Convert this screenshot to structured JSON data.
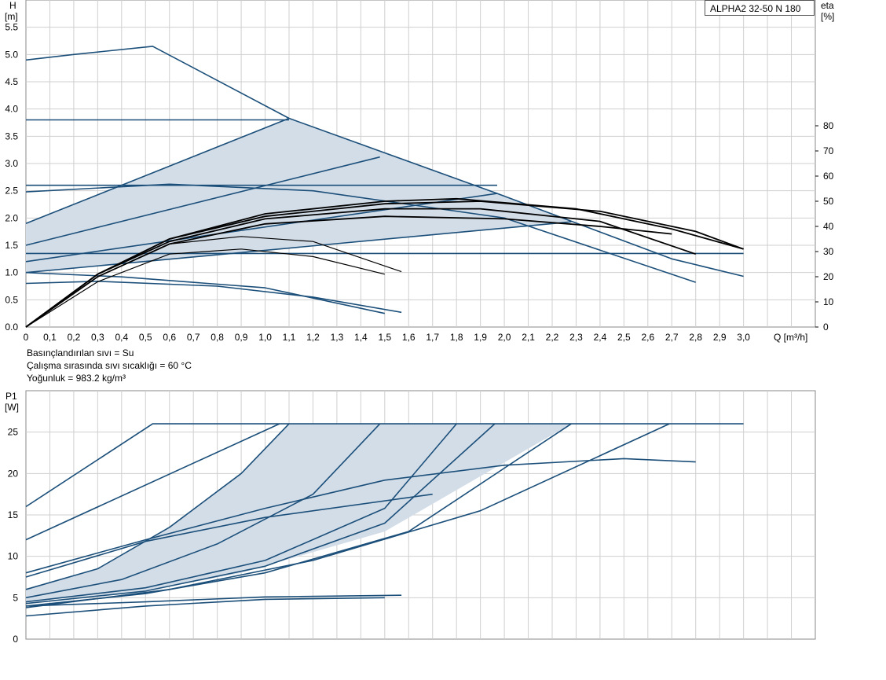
{
  "model_label": "ALPHA2 32-50 N 180",
  "notes": {
    "liquid": "Basınçlandırılan sıvı = Su",
    "temperature": "Çalışma sırasında sıvı sıcaklığı = 60 °C",
    "density": "Yoğunluk = 983.2 kg/m³"
  },
  "colors": {
    "curve": "#1b4f7a",
    "eta": "#000000",
    "fill": "#d3dde8",
    "grid": "#cfcfcf"
  },
  "chart_data": [
    {
      "type": "line",
      "id": "head",
      "left_axis": {
        "label_1": "H",
        "label_2": "[m]",
        "ylim": [
          0,
          6
        ],
        "ticks": [
          "0.0",
          "0.5",
          "1.0",
          "1.5",
          "2.0",
          "2.5",
          "3.0",
          "3.5",
          "4.0",
          "4.5",
          "5.0",
          "5.5"
        ]
      },
      "right_axis": {
        "label_1": "eta",
        "label_2": "[%]",
        "ylim": [
          0,
          130
        ],
        "ticks": [
          "0",
          "10",
          "20",
          "30",
          "40",
          "50",
          "60",
          "70",
          "80"
        ]
      },
      "x_axis": {
        "label": "Q [m³/h]",
        "xlim": [
          0,
          3.3
        ],
        "ticks": [
          "0",
          "0,1",
          "0,2",
          "0,3",
          "0,4",
          "0,5",
          "0,6",
          "0,7",
          "0,8",
          "0,9",
          "1,0",
          "1,1",
          "1,2",
          "1,3",
          "1,4",
          "1,5",
          "1,6",
          "1,7",
          "1,8",
          "1,9",
          "2,0",
          "2,1",
          "2,2",
          "2,3",
          "2,4",
          "2,5",
          "2,6",
          "2,7",
          "2,8",
          "2,9",
          "3,0"
        ]
      },
      "grid": true,
      "shaded_areas": [
        {
          "points": [
            [
              0,
              1.9
            ],
            [
              1.1,
              3.83
            ],
            [
              1.97,
              2.45
            ],
            [
              2.28,
              1.93
            ],
            [
              0,
              1.0
            ]
          ]
        }
      ],
      "series": [
        {
          "points": [
            [
              0,
              4.9
            ],
            [
              0.2,
              5.0
            ],
            [
              0.53,
              5.15
            ],
            [
              1.1,
              3.83
            ],
            [
              1.97,
              2.45
            ],
            [
              2.7,
              1.25
            ],
            [
              3.0,
              0.93
            ]
          ]
        },
        {
          "points": [
            [
              0,
              3.8
            ],
            [
              1.1,
              3.8
            ]
          ]
        },
        {
          "points": [
            [
              0,
              2.6
            ],
            [
              1.97,
              2.6
            ]
          ]
        },
        {
          "points": [
            [
              0,
              1.35
            ],
            [
              3.0,
              1.35
            ]
          ]
        },
        {
          "points": [
            [
              0,
              1.9
            ],
            [
              1.1,
              3.83
            ]
          ]
        },
        {
          "points": [
            [
              0,
              1.5
            ],
            [
              1.48,
              3.12
            ]
          ]
        },
        {
          "points": [
            [
              0,
              1.2
            ],
            [
              1.97,
              2.45
            ]
          ]
        },
        {
          "points": [
            [
              0,
              1.0
            ],
            [
              2.28,
              1.93
            ]
          ]
        },
        {
          "points": [
            [
              0,
              2.48
            ],
            [
              0.6,
              2.62
            ],
            [
              1.2,
              2.5
            ],
            [
              2.0,
              2.0
            ],
            [
              2.8,
              0.82
            ]
          ]
        },
        {
          "points": [
            [
              0,
              0.8
            ],
            [
              0.3,
              0.84
            ],
            [
              0.8,
              0.75
            ],
            [
              1.2,
              0.55
            ],
            [
              1.57,
              0.27
            ]
          ]
        },
        {
          "points": [
            [
              0,
              1.0
            ],
            [
              0.4,
              0.92
            ],
            [
              1.0,
              0.72
            ],
            [
              1.5,
              0.25
            ]
          ]
        }
      ],
      "eta_series": [
        {
          "points": [
            [
              0,
              0
            ],
            [
              0.3,
              20
            ],
            [
              0.6,
              33
            ],
            [
              0.9,
              36
            ],
            [
              1.2,
              34
            ],
            [
              1.57,
              22
            ]
          ]
        },
        {
          "points": [
            [
              0,
              0
            ],
            [
              0.3,
              18
            ],
            [
              0.6,
              29
            ],
            [
              0.9,
              31
            ],
            [
              1.2,
              28
            ],
            [
              1.5,
              21
            ]
          ]
        },
        {
          "points": [
            [
              0,
              0
            ],
            [
              0.3,
              21
            ],
            [
              0.6,
              35
            ],
            [
              1.0,
              44
            ],
            [
              1.5,
              49
            ],
            [
              1.9,
              50
            ],
            [
              2.4,
              46
            ],
            [
              2.8,
              38
            ],
            [
              3.0,
              31
            ]
          ]
        },
        {
          "points": [
            [
              0,
              0
            ],
            [
              0.3,
              21
            ],
            [
              0.6,
              35
            ],
            [
              1.0,
              45
            ],
            [
              1.5,
              50
            ],
            [
              1.8,
              51
            ],
            [
              2.3,
              47
            ],
            [
              2.7,
              39
            ],
            [
              3.0,
              31
            ]
          ]
        },
        {
          "points": [
            [
              0,
              0
            ],
            [
              0.3,
              21
            ],
            [
              0.6,
              34
            ],
            [
              1.0,
              43
            ],
            [
              1.5,
              47
            ],
            [
              1.9,
              47
            ],
            [
              2.4,
              42
            ],
            [
              2.8,
              29
            ]
          ]
        },
        {
          "points": [
            [
              0,
              0
            ],
            [
              0.3,
              20
            ],
            [
              0.6,
              33
            ],
            [
              1.0,
              41
            ],
            [
              1.5,
              44
            ],
            [
              2.0,
              43
            ],
            [
              2.4,
              40
            ],
            [
              2.7,
              37
            ]
          ]
        }
      ]
    },
    {
      "type": "line",
      "id": "power",
      "left_axis": {
        "label_1": "P1",
        "label_2": "[W]",
        "ylim": [
          0,
          30
        ],
        "ticks": [
          "0",
          "5",
          "10",
          "15",
          "20",
          "25"
        ]
      },
      "xlim": [
        0,
        3.3
      ],
      "grid": true,
      "shaded_areas": [
        {
          "points": [
            [
              0,
              6.0
            ],
            [
              0.3,
              8.5
            ],
            [
              0.6,
              13.5
            ],
            [
              0.9,
              20.0
            ],
            [
              1.1,
              26.0
            ],
            [
              2.28,
              26.0
            ],
            [
              1.5,
              13.0
            ],
            [
              0.9,
              8.0
            ],
            [
              0.5,
              5.8
            ],
            [
              0,
              4.5
            ]
          ]
        }
      ],
      "series": [
        {
          "points": [
            [
              0,
              16.0
            ],
            [
              0.53,
              26.0
            ],
            [
              3.0,
              26.0
            ]
          ]
        },
        {
          "points": [
            [
              0,
              12.0
            ],
            [
              1.06,
              26.0
            ]
          ]
        },
        {
          "points": [
            [
              0,
              6.0
            ],
            [
              0.3,
              8.5
            ],
            [
              0.6,
              13.5
            ],
            [
              0.9,
              20.0
            ],
            [
              1.1,
              26.0
            ]
          ]
        },
        {
          "points": [
            [
              0,
              5.0
            ],
            [
              0.4,
              7.2
            ],
            [
              0.8,
              11.5
            ],
            [
              1.2,
              17.5
            ],
            [
              1.48,
              26.0
            ]
          ]
        },
        {
          "points": [
            [
              0,
              4.5
            ],
            [
              0.5,
              6.2
            ],
            [
              1.0,
              9.5
            ],
            [
              1.5,
              15.8
            ],
            [
              1.8,
              26.0
            ]
          ]
        },
        {
          "points": [
            [
              0,
              4.3
            ],
            [
              0.5,
              5.8
            ],
            [
              1.0,
              8.8
            ],
            [
              1.5,
              14.0
            ],
            [
              1.96,
              26.0
            ]
          ]
        },
        {
          "points": [
            [
              0,
              4.0
            ],
            [
              0.5,
              5.5
            ],
            [
              1.0,
              8.0
            ],
            [
              1.6,
              13.0
            ],
            [
              2.28,
              26.0
            ]
          ]
        },
        {
          "points": [
            [
              0,
              3.8
            ],
            [
              0.6,
              6.0
            ],
            [
              1.2,
              9.5
            ],
            [
              1.9,
              15.5
            ],
            [
              2.69,
              26.0
            ]
          ]
        },
        {
          "points": [
            [
              0,
              8.0
            ],
            [
              0.5,
              12.0
            ],
            [
              1.0,
              15.8
            ],
            [
              1.5,
              19.2
            ],
            [
              2.0,
              21.0
            ],
            [
              2.5,
              21.8
            ],
            [
              2.8,
              21.4
            ]
          ]
        },
        {
          "points": [
            [
              0,
              7.5
            ],
            [
              0.5,
              11.8
            ],
            [
              1.0,
              14.7
            ],
            [
              1.7,
              17.5
            ]
          ]
        },
        {
          "points": [
            [
              0,
              4.0
            ],
            [
              0.5,
              4.5
            ],
            [
              1.0,
              5.1
            ],
            [
              1.57,
              5.3
            ]
          ]
        },
        {
          "points": [
            [
              0,
              2.8
            ],
            [
              0.5,
              4.0
            ],
            [
              1.0,
              4.8
            ],
            [
              1.5,
              5.0
            ]
          ]
        }
      ]
    }
  ]
}
